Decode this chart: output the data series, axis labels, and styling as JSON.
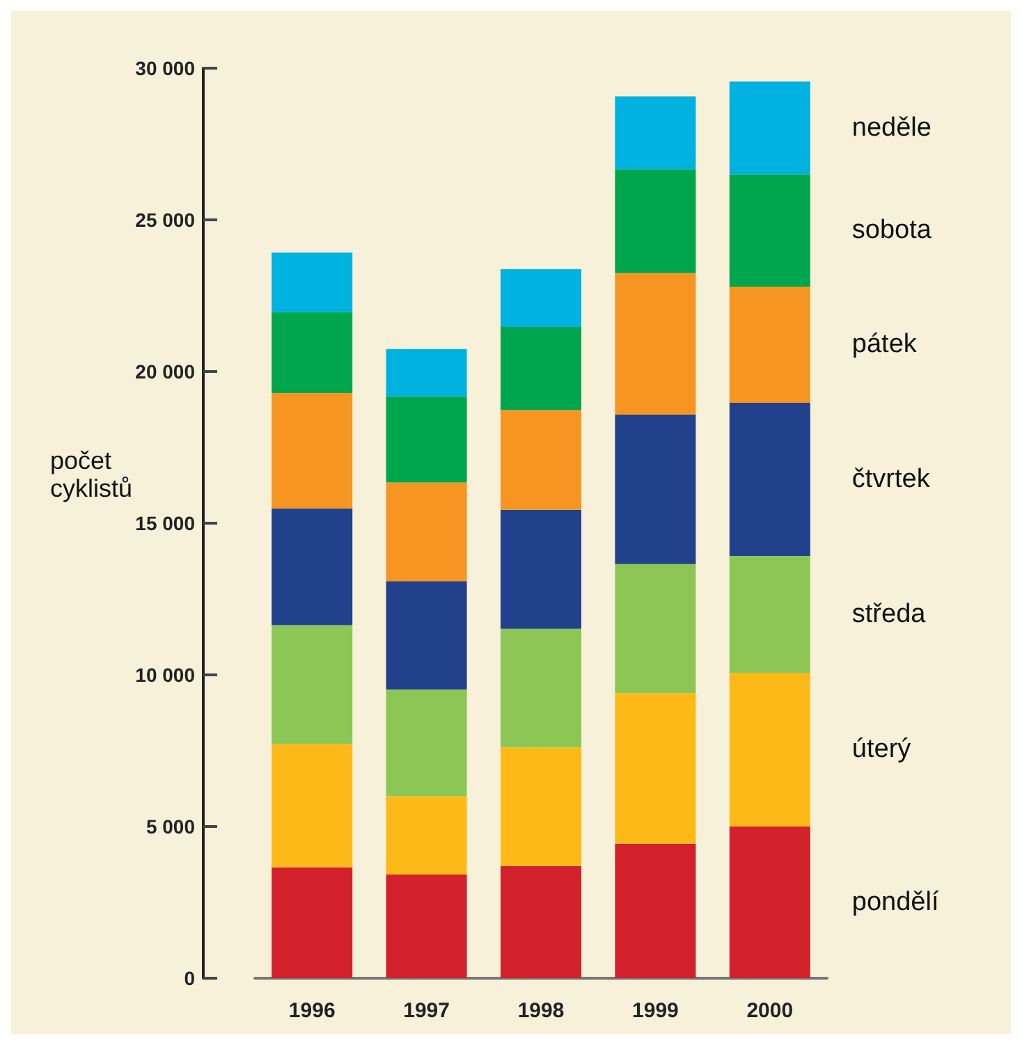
{
  "chart_data": {
    "type": "bar",
    "stacked": true,
    "ylabel": "počet\ncyklistů",
    "categories": [
      "1996",
      "1997",
      "1998",
      "1999",
      "2000"
    ],
    "series": [
      {
        "name": "pondělí",
        "color": "#d2212b",
        "values": [
          3660,
          3420,
          3700,
          4430,
          5000
        ]
      },
      {
        "name": "úterý",
        "color": "#fdb917",
        "values": [
          4060,
          2580,
          3910,
          4970,
          5070
        ]
      },
      {
        "name": "středa",
        "color": "#8cc756",
        "values": [
          3920,
          3520,
          3910,
          4250,
          3850
        ]
      },
      {
        "name": "čtvrtek",
        "color": "#21418c",
        "values": [
          3850,
          3570,
          3920,
          4930,
          5050
        ]
      },
      {
        "name": "pátek",
        "color": "#f69521",
        "values": [
          3800,
          3250,
          3290,
          4670,
          3830
        ]
      },
      {
        "name": "sobota",
        "color": "#00a64d",
        "values": [
          2670,
          2840,
          2740,
          3420,
          3700
        ]
      },
      {
        "name": "neděle",
        "color": "#00b2df",
        "values": [
          1960,
          1560,
          1900,
          2400,
          3060
        ]
      }
    ],
    "ylim": [
      0,
      30000
    ],
    "yticks": [
      {
        "value": 0,
        "label": "0"
      },
      {
        "value": 5000,
        "label": "5 000"
      },
      {
        "value": 10000,
        "label": "10 000"
      },
      {
        "value": 15000,
        "label": "15 000"
      },
      {
        "value": 20000,
        "label": "20 000"
      },
      {
        "value": 25000,
        "label": "25 000"
      },
      {
        "value": 30000,
        "label": "30 000"
      }
    ],
    "grid": false,
    "legend": "right"
  }
}
